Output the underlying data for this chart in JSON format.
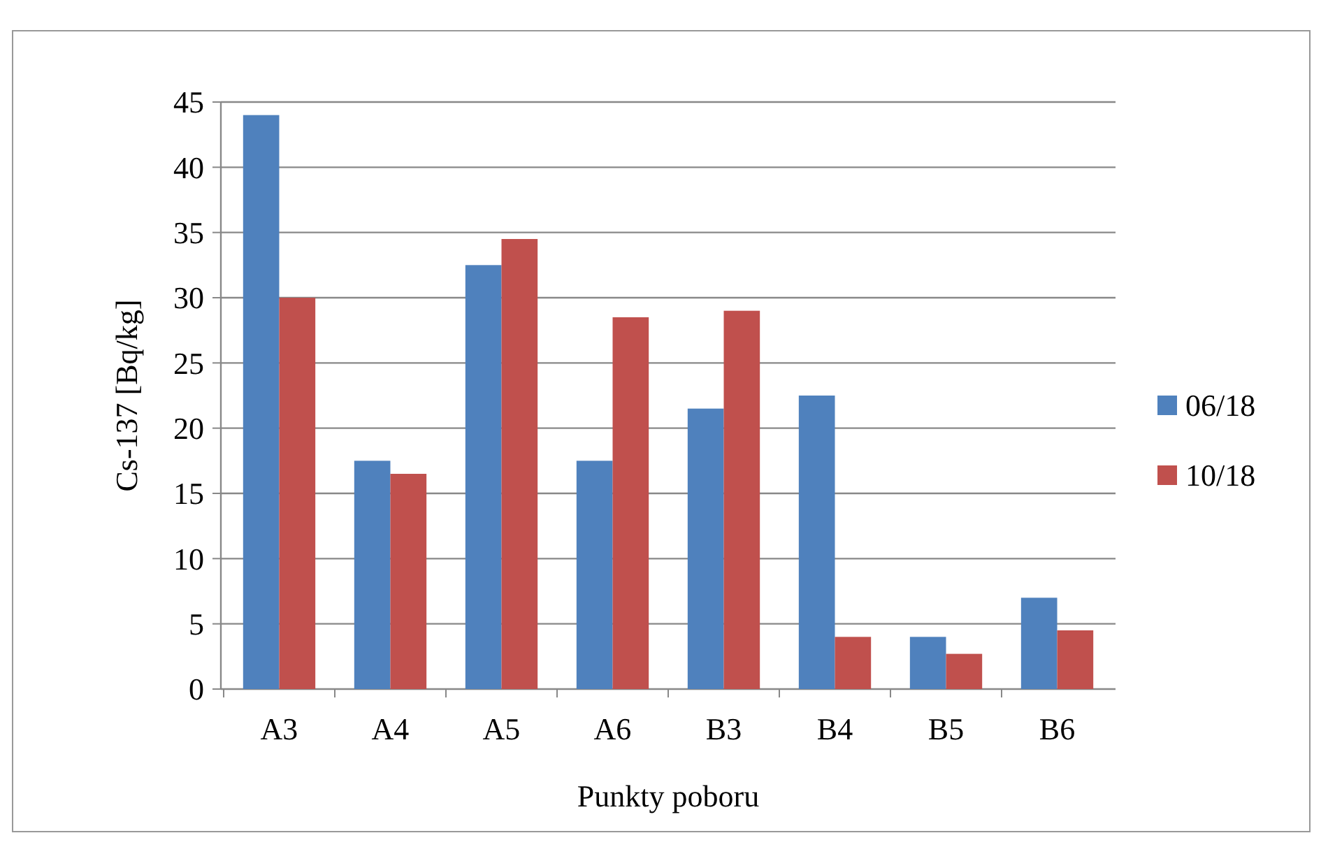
{
  "chart_data": {
    "type": "bar",
    "xlabel": "Punkty poboru",
    "ylabel": "Cs-137 [Bq/kg]",
    "categories": [
      "A3",
      "A4",
      "A5",
      "A6",
      "B3",
      "B4",
      "B5",
      "B6"
    ],
    "series": [
      {
        "name": "06/18",
        "color": "#4f81bd",
        "values": [
          44,
          17.5,
          32.5,
          17.5,
          21.5,
          22.5,
          4,
          7
        ]
      },
      {
        "name": "10/18",
        "color": "#c0504d",
        "values": [
          30,
          16.5,
          34.5,
          28.5,
          29,
          4,
          2.7,
          4.5
        ]
      }
    ],
    "ylim": [
      0,
      45
    ],
    "yticks": [
      0,
      5,
      10,
      15,
      20,
      25,
      30,
      35,
      40,
      45
    ],
    "grid": "y",
    "legend": "right"
  }
}
